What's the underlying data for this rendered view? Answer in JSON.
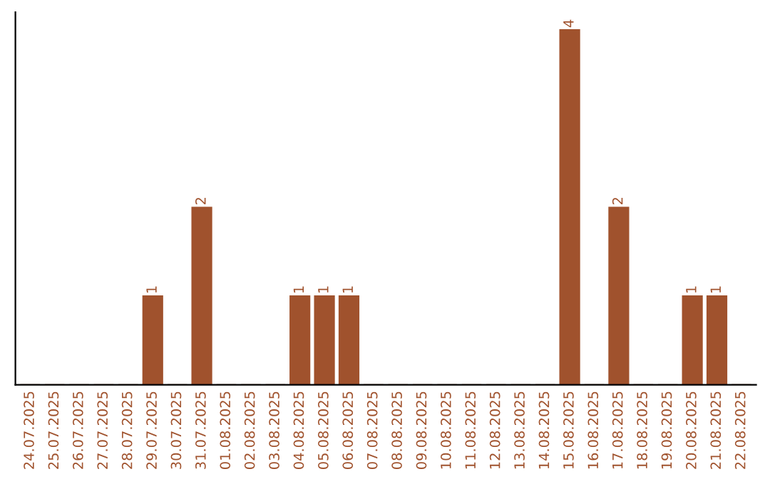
{
  "chart_data": {
    "type": "bar",
    "categories": [
      "24.07.2025",
      "25.07.2025",
      "26.07.2025",
      "27.07.2025",
      "28.07.2025",
      "29.07.2025",
      "30.07.2025",
      "31.07.2025",
      "01.08.2025",
      "02.08.2025",
      "03.08.2025",
      "04.08.2025",
      "05.08.2025",
      "06.08.2025",
      "07.08.2025",
      "08.08.2025",
      "09.08.2025",
      "10.08.2025",
      "11.08.2025",
      "12.08.2025",
      "13.08.2025",
      "14.08.2025",
      "15.08.2025",
      "16.08.2025",
      "17.08.2025",
      "18.08.2025",
      "19.08.2025",
      "20.08.2025",
      "21.08.2025",
      "22.08.2025"
    ],
    "values": [
      0,
      0,
      0,
      0,
      0,
      1,
      0,
      2,
      0,
      0,
      0,
      1,
      1,
      1,
      0,
      0,
      0,
      0,
      0,
      0,
      0,
      0,
      4,
      0,
      2,
      0,
      0,
      1,
      1,
      0
    ],
    "value_labels": [
      null,
      null,
      null,
      null,
      null,
      "1",
      null,
      "2",
      null,
      null,
      null,
      "1",
      "1",
      "1",
      null,
      null,
      null,
      null,
      null,
      null,
      null,
      null,
      "4",
      null,
      "2",
      null,
      null,
      "1",
      "1",
      null
    ],
    "color": "#a0522d",
    "grid": false,
    "legend": false
  }
}
